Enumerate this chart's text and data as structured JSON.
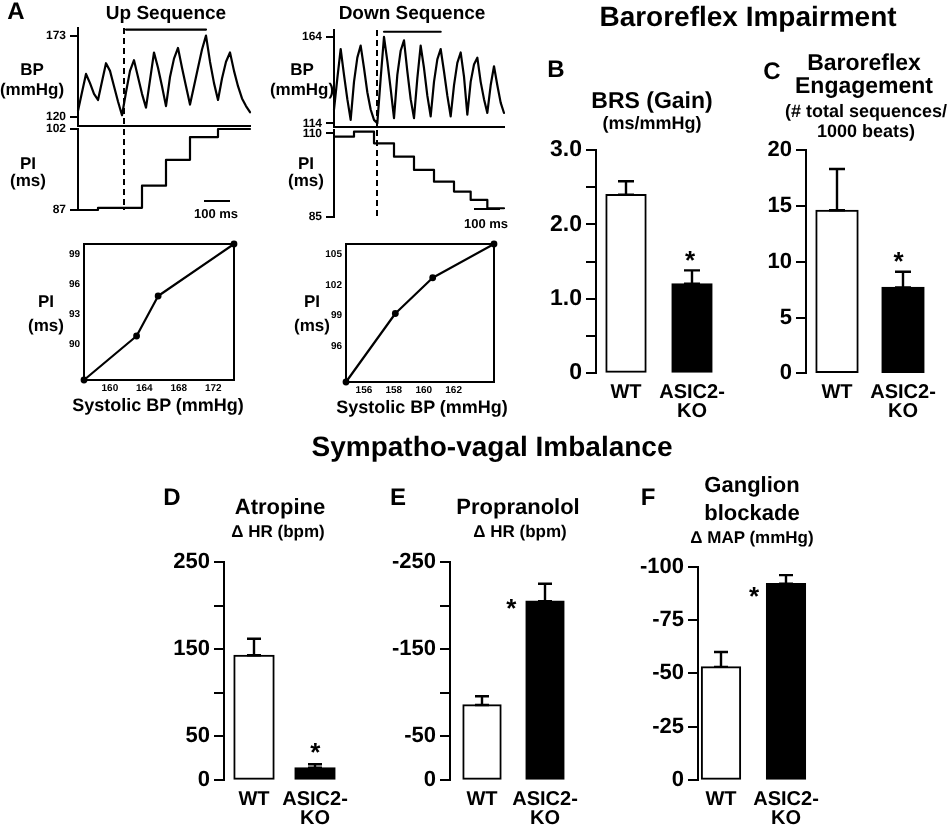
{
  "chart_data": [
    {
      "type": "line",
      "title": "Up Sequence",
      "ylabel": "BP (mmHg)",
      "categories": [
        null,
        null,
        null,
        null,
        null,
        null,
        null,
        null,
        null,
        null,
        null,
        null,
        null,
        null,
        null,
        null,
        null,
        null,
        null,
        null,
        null,
        null,
        null,
        null,
        null,
        null,
        null,
        null,
        null,
        null,
        null,
        null,
        null,
        null,
        null,
        null,
        null,
        null,
        null,
        null,
        null,
        null,
        null,
        null
      ],
      "series": [
        {
          "color": "#000000",
          "values": [
            124,
            136,
            148,
            142,
            135,
            131,
            143,
            155,
            150,
            140,
            130,
            121,
            136,
            150,
            157,
            146,
            135,
            126,
            144,
            162,
            152,
            140,
            127,
            146,
            158,
            165,
            152,
            140,
            128,
            140,
            152,
            164,
            173,
            156,
            142,
            131,
            145,
            156,
            162,
            150,
            140,
            132,
            127,
            123
          ]
        },
        {
          "color": "#000000",
          "values": [
            null,
            null,
            null,
            null,
            null,
            null,
            null,
            null,
            null,
            null,
            null,
            null,
            177,
            177,
            177,
            177,
            177,
            177,
            177,
            177,
            177,
            177,
            177,
            177,
            177,
            177,
            177,
            177,
            177,
            177,
            177,
            177,
            177,
            null,
            null,
            null,
            null,
            null,
            null,
            null,
            null,
            null,
            null,
            null
          ]
        }
      ],
      "ylim": [
        114,
        178
      ],
      "yticks": [
        120,
        173
      ],
      "annotations": [
        "A"
      ]
    },
    {
      "type": "step",
      "ylabel": "PI (ms)",
      "categories": [
        null,
        null,
        null,
        null,
        null,
        null,
        null,
        null,
        null,
        null,
        null,
        null,
        null,
        null,
        null,
        null,
        null,
        null,
        null,
        null,
        null,
        null,
        null,
        null,
        null,
        null,
        null,
        null,
        null,
        null,
        null,
        null,
        null,
        null,
        null,
        null,
        null,
        null,
        null,
        null,
        null,
        null,
        null,
        null
      ],
      "values": [
        87,
        87,
        87,
        87,
        87,
        87,
        87.4,
        87.4,
        87.4,
        87.4,
        87.4,
        87.4,
        87.4,
        87.4,
        87.4,
        87.4,
        87.4,
        91.5,
        91.5,
        91.5,
        91.5,
        91.5,
        91.5,
        96.3,
        96.3,
        96.3,
        96.3,
        96.3,
        96.3,
        100.5,
        100.5,
        100.5,
        100.5,
        100.5,
        100.5,
        100.5,
        102,
        102,
        102,
        102,
        102,
        102,
        102,
        102
      ],
      "color": "#000000",
      "ylim": [
        87,
        102
      ],
      "yticks": [
        87,
        102
      ],
      "annotations": [
        "100 ms"
      ]
    },
    {
      "type": "line",
      "title": "Down Sequence",
      "ylabel": "BP (mmHg)",
      "categories": [
        null,
        null,
        null,
        null,
        null,
        null,
        null,
        null,
        null,
        null,
        null,
        null,
        null,
        null,
        null,
        null,
        null,
        null,
        null,
        null,
        null,
        null,
        null,
        null,
        null,
        null,
        null,
        null,
        null,
        null,
        null,
        null,
        null,
        null,
        null,
        null,
        null,
        null,
        null,
        null,
        null,
        null,
        null,
        null,
        null,
        null,
        null,
        null,
        null,
        null,
        null,
        null
      ],
      "series": [
        {
          "color": "#000000",
          "values": [
            122,
            140,
            157,
            142,
            128,
            116,
            138,
            152,
            159,
            146,
            132,
            122,
            116,
            114,
            140,
            164,
            150,
            134,
            117,
            142,
            156,
            162,
            144,
            128,
            117,
            140,
            159,
            146,
            130,
            118,
            138,
            151,
            157,
            144,
            130,
            118,
            136,
            149,
            155,
            141,
            119,
            138,
            148,
            152,
            138,
            128,
            120,
            136,
            147,
            136,
            126,
            120
          ]
        },
        {
          "color": "#000000",
          "values": [
            null,
            null,
            null,
            null,
            null,
            null,
            null,
            null,
            null,
            null,
            null,
            null,
            null,
            null,
            null,
            167,
            167,
            167,
            167,
            167,
            167,
            167,
            167,
            167,
            167,
            167,
            167,
            167,
            167,
            167,
            167,
            167,
            167,
            null,
            null,
            null,
            null,
            null,
            null,
            null,
            null,
            null,
            null,
            null,
            null,
            null,
            null,
            null,
            null,
            null,
            null,
            null
          ]
        }
      ],
      "ylim": [
        112,
        168
      ],
      "yticks": [
        114,
        164
      ]
    },
    {
      "type": "step",
      "ylabel": "PI (ms)",
      "categories": [
        null,
        null,
        null,
        null,
        null,
        null,
        null,
        null,
        null,
        null,
        null,
        null,
        null,
        null,
        null,
        null,
        null,
        null,
        null,
        null,
        null,
        null,
        null,
        null,
        null,
        null,
        null,
        null,
        null,
        null,
        null,
        null,
        null,
        null,
        null,
        null,
        null,
        null,
        null,
        null,
        null,
        null,
        null,
        null,
        null,
        null,
        null,
        null,
        null,
        null,
        null,
        null
      ],
      "values": [
        109,
        109,
        109,
        109,
        109,
        109,
        109,
        110.5,
        110.5,
        110.5,
        110.5,
        110.5,
        110.5,
        107,
        107,
        107,
        107,
        107,
        107,
        103,
        103,
        103,
        103,
        103,
        103,
        99,
        99,
        99,
        99,
        99,
        99,
        95.5,
        95.5,
        95.5,
        95.5,
        95.5,
        95.5,
        92.5,
        92.5,
        92.5,
        92.5,
        92.5,
        90,
        90,
        90,
        90,
        90,
        87.5,
        87.5,
        87.5,
        87.5,
        87.5
      ],
      "color": "#000000",
      "ylim": [
        85,
        111
      ],
      "yticks": [
        85,
        110
      ],
      "annotations": [
        "100 ms"
      ]
    },
    {
      "type": "line",
      "xlabel": "Systolic BP (mmHg)",
      "ylabel": "PI (ms)",
      "x": [
        157,
        163.1,
        165.6,
        174.4
      ],
      "values": [
        86.4,
        90.8,
        94.8,
        100
      ],
      "color": "#000000",
      "marker": "circle",
      "xlim": [
        157,
        174.4
      ],
      "xticks": [
        160,
        164,
        168,
        172
      ],
      "ylim": [
        86.4,
        100
      ],
      "yticks": [
        90,
        93,
        96,
        99
      ]
    },
    {
      "type": "line",
      "xlabel": "Systolic BP (mmHg)",
      "ylabel": "PI (ms)",
      "x": [
        154.8,
        158.1,
        160.6,
        164.7
      ],
      "values": [
        92.5,
        99.2,
        102.7,
        106
      ],
      "color": "#000000",
      "marker": "circle",
      "xlim": [
        154.8,
        164.7
      ],
      "xticks": [
        156,
        158,
        160,
        162
      ],
      "ylim": [
        92.5,
        106
      ],
      "yticks": [
        96,
        99,
        102,
        105
      ]
    },
    {
      "type": "bar",
      "title": "BRS (Gain)",
      "subtitle": "(ms/mmHg)",
      "categories": [
        "WT",
        "ASIC2-KO"
      ],
      "values": [
        2.4,
        1.2
      ],
      "colors": [
        "#ffffff",
        "#000000"
      ],
      "errors": [
        [
          2.4,
          2.58
        ],
        [
          1.2,
          1.38
        ]
      ],
      "ylim": [
        0,
        3
      ],
      "yticks": [
        0,
        {
          "value": 0.5,
          "label": null
        },
        {
          "value": 1,
          "label": "1.0"
        },
        {
          "value": 1.5,
          "label": null
        },
        {
          "value": 2,
          "label": "2.0"
        },
        {
          "value": 2.5,
          "label": null
        },
        {
          "value": 3,
          "label": "3.0"
        }
      ],
      "annotations": [
        "B",
        "Baroreflex Impairment",
        "*"
      ]
    },
    {
      "type": "bar",
      "title": "Baroreflex Engagement",
      "subtitle": "(# total sequences/ 1000 beats)",
      "categories": [
        "WT",
        "ASIC2-KO"
      ],
      "values": [
        14.6,
        7.7
      ],
      "colors": [
        "#ffffff",
        "#000000"
      ],
      "errors": [
        [
          14.6,
          18.3
        ],
        [
          7.7,
          9.1
        ]
      ],
      "ylim": [
        0,
        20
      ],
      "yticks": [
        0,
        5,
        10,
        15,
        20
      ],
      "annotations": [
        "C",
        "*"
      ]
    },
    {
      "type": "bar",
      "title": "Atropine",
      "subtitle": "Δ HR (bpm)",
      "categories": [
        "WT",
        "ASIC2-KO"
      ],
      "values": [
        143,
        14
      ],
      "colors": [
        "#ffffff",
        "#000000"
      ],
      "errors": [
        [
          143,
          162
        ],
        [
          14,
          18
        ]
      ],
      "ylim": [
        0,
        250
      ],
      "yticks": [
        0,
        50,
        {
          "value": 100,
          "label": null
        },
        150,
        {
          "value": 200,
          "label": null
        },
        250
      ],
      "annotations": [
        "D",
        "Sympatho-vagal Imbalance",
        "*"
      ]
    },
    {
      "type": "bar",
      "title": "Propranolol",
      "subtitle": "Δ HR (bpm)",
      "categories": [
        "WT",
        "ASIC2-KO"
      ],
      "values": [
        -86,
        -205
      ],
      "colors": [
        "#ffffff",
        "#000000"
      ],
      "errors": [
        [
          -96,
          -86
        ],
        [
          -225,
          -205
        ]
      ],
      "ylim": [
        0,
        -250
      ],
      "yticks": [
        0,
        -50,
        {
          "value": -100,
          "label": null
        },
        -150,
        {
          "value": -200,
          "label": null
        },
        -250
      ],
      "annotations": [
        "E",
        "*"
      ]
    },
    {
      "type": "bar",
      "title": "Ganglion blockade",
      "subtitle": "Δ MAP (mmHg)",
      "categories": [
        "WT",
        "ASIC2-KO"
      ],
      "values": [
        -53,
        -92
      ],
      "colors": [
        "#ffffff",
        "#000000"
      ],
      "errors": [
        [
          -60,
          -53
        ],
        [
          -96,
          -92
        ]
      ],
      "ylim": [
        0,
        -100
      ],
      "yticks": [
        0,
        -25,
        -50,
        -75,
        -100
      ],
      "annotations": [
        "F",
        "*"
      ]
    }
  ]
}
